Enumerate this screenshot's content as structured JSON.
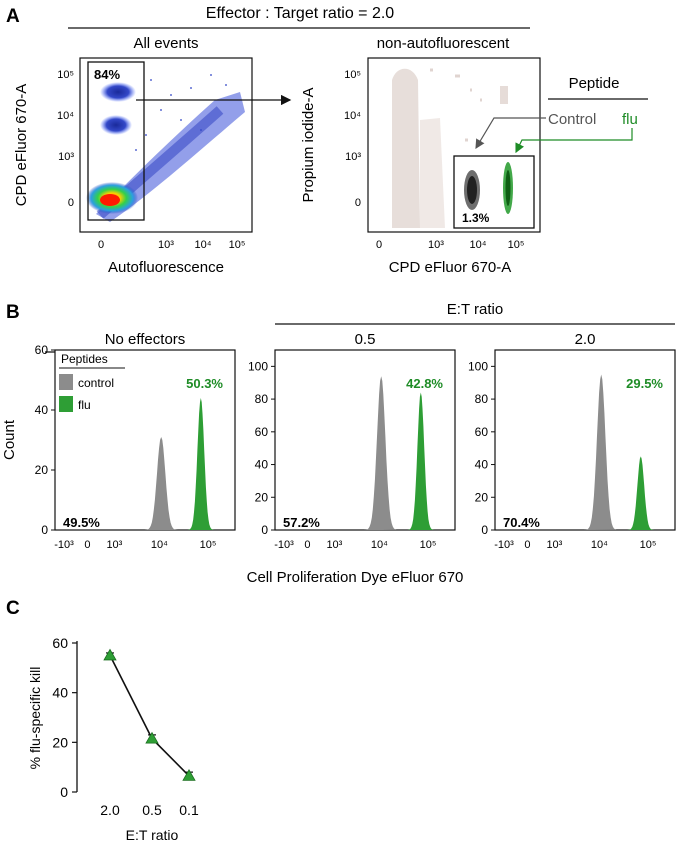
{
  "colors": {
    "green": "#2e9e35",
    "green_text": "#1e8c26",
    "gray": "#8c8c8c",
    "flow_bg": "#e6dcd8"
  },
  "panelA": {
    "letter": "A",
    "super_title": "Effector : Target ratio = 2.0",
    "plot1": {
      "title": "All events",
      "xlabel": "Autofluorescence",
      "ylabel": "CPD eFluor 670-A",
      "gate_pct": "84%",
      "xticks": [
        "0",
        "10³",
        "10⁴",
        "10⁵"
      ],
      "yticks": [
        "10⁵",
        "10⁴",
        "10³",
        "0"
      ]
    },
    "plot2": {
      "title": "non-autofluorescent",
      "xlabel": "CPD eFluor 670-A",
      "ylabel": "Propium iodide-A",
      "inset_pct": "1.3%",
      "xticks": [
        "0",
        "10³",
        "10⁴",
        "10⁵"
      ],
      "yticks": [
        "10⁵",
        "10⁴",
        "10³",
        "0"
      ]
    },
    "legend": {
      "title": "Peptide",
      "control": "Control",
      "flu": "flu"
    }
  },
  "panelB": {
    "letter": "B",
    "group_label": "E:T ratio",
    "xlabel": "Cell Proliferation Dye eFluor 670",
    "ylabel": "Count",
    "legend": {
      "title": "Peptides",
      "items": [
        "control",
        "flu"
      ]
    },
    "xticks": [
      "-10³",
      "0",
      "10³",
      "10⁴",
      "10⁵"
    ],
    "hists": [
      {
        "title": "No effectors",
        "yticks": [
          "0",
          "20",
          "40",
          "60"
        ],
        "ymax": 60,
        "control_peak": 31,
        "flu_peak": 44,
        "left_pct": "49.5%",
        "right_pct": "50.3%"
      },
      {
        "title": "0.5",
        "yticks": [
          "0",
          "20",
          "40",
          "60",
          "80",
          "100"
        ],
        "ymax": 110,
        "control_peak": 94,
        "flu_peak": 84,
        "left_pct": "57.2%",
        "right_pct": "42.8%"
      },
      {
        "title": "2.0",
        "yticks": [
          "0",
          "20",
          "40",
          "60",
          "80",
          "100"
        ],
        "ymax": 110,
        "control_peak": 95,
        "flu_peak": 45,
        "left_pct": "70.4%",
        "right_pct": "29.5%"
      }
    ]
  },
  "chart_data": {
    "type": "line",
    "panel_letter": "C",
    "categories": [
      "2.0",
      "0.5",
      "0.1"
    ],
    "series": [
      {
        "name": "% flu-specific kill",
        "values": [
          55,
          21.5,
          6.5
        ],
        "errors": [
          1,
          1.5,
          1.5
        ]
      }
    ],
    "xlabel": "E:T ratio",
    "ylabel": "% flu-specific kill",
    "ylim": [
      0,
      60
    ],
    "yticks": [
      "0",
      "20",
      "40",
      "60"
    ]
  }
}
